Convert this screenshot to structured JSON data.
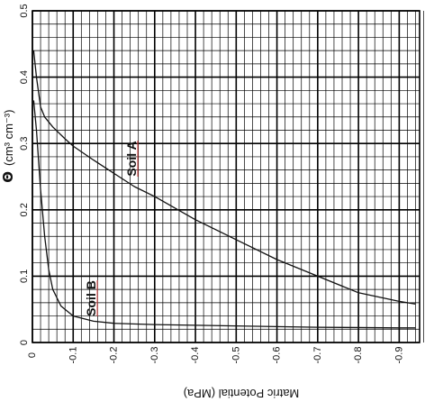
{
  "chart_data": {
    "type": "line",
    "title": "",
    "xlabel": "Matric Potential (MPa)",
    "ylabel_symbol": "Θ",
    "ylabel_units": "(cm³ cm⁻³)",
    "xlim": [
      0,
      -0.95
    ],
    "ylim": [
      0,
      0.5
    ],
    "x_ticks": [
      "0",
      "-0.1",
      "-0.2",
      "-0.3",
      "-0.4",
      "-0.5",
      "-0.6",
      "-0.7",
      "-0.8",
      "-0.9"
    ],
    "y_ticks": [
      "0",
      "0.1",
      "0.2",
      "0.3",
      "0.4",
      "0.5"
    ],
    "grid": true,
    "orientation": "rotated 180°",
    "series": [
      {
        "name": "Soil A",
        "x": [
          -0.003,
          -0.01,
          -0.02,
          -0.03,
          -0.05,
          -0.08,
          -0.1,
          -0.15,
          -0.2,
          -0.25,
          -0.3,
          -0.4,
          -0.5,
          -0.6,
          -0.7,
          -0.8,
          -0.9,
          -0.94
        ],
        "y": [
          0.44,
          0.4,
          0.355,
          0.34,
          0.325,
          0.307,
          0.296,
          0.275,
          0.255,
          0.235,
          0.22,
          0.185,
          0.155,
          0.125,
          0.1,
          0.075,
          0.062,
          0.058
        ]
      },
      {
        "name": "Soil B",
        "x": [
          -0.003,
          -0.01,
          -0.02,
          -0.03,
          -0.04,
          -0.05,
          -0.07,
          -0.1,
          -0.15,
          -0.2,
          -0.3,
          -0.4,
          -0.5,
          -0.7,
          -0.9,
          -0.94
        ],
        "y": [
          0.365,
          0.32,
          0.23,
          0.16,
          0.11,
          0.08,
          0.055,
          0.04,
          0.032,
          0.029,
          0.027,
          0.026,
          0.025,
          0.023,
          0.022,
          0.022
        ]
      }
    ]
  }
}
